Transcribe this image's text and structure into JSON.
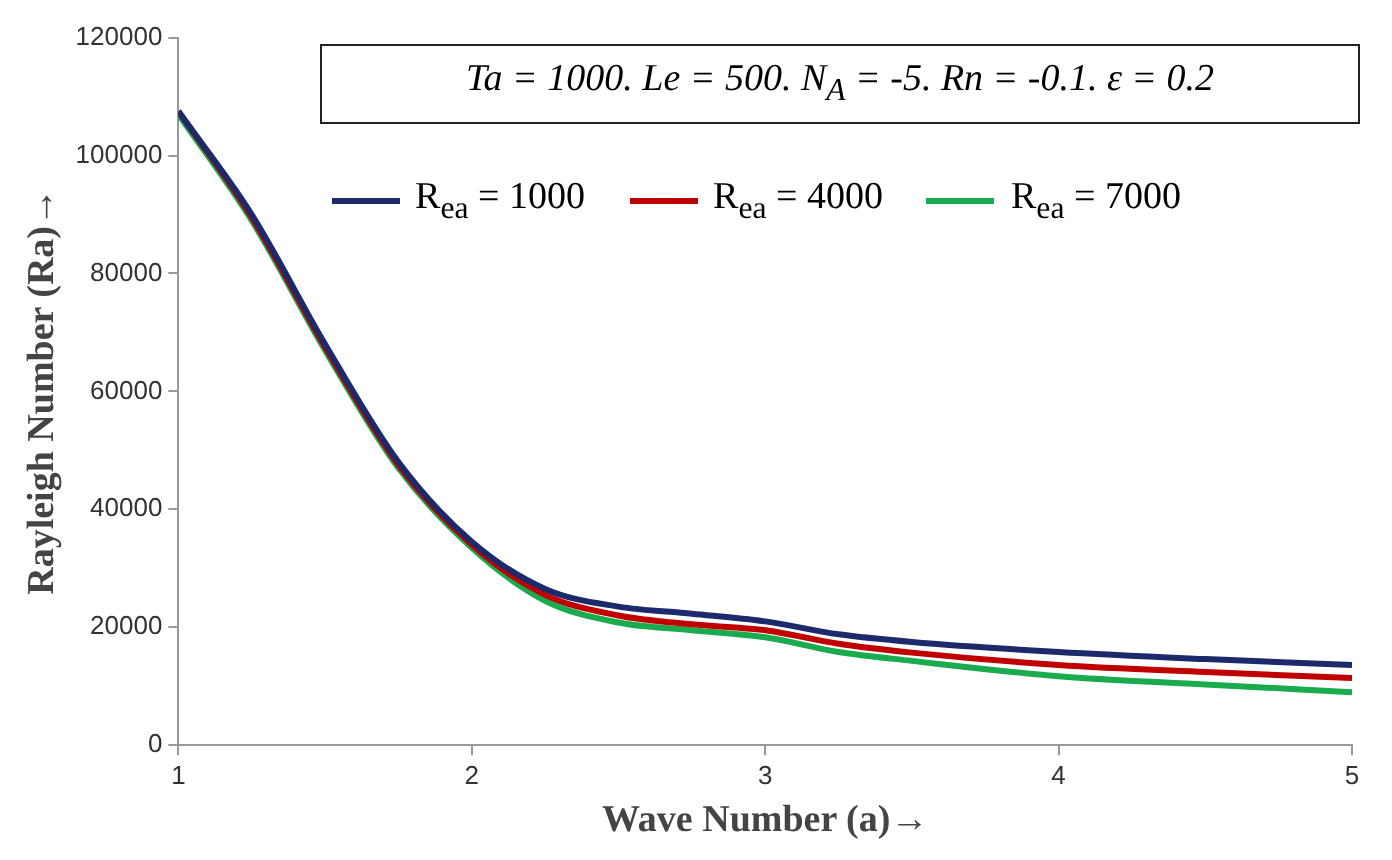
{
  "chart_data": {
    "type": "line",
    "title": "Ta = 1000. Le = 500. N$_{A}$ = -5. Rn = -0.1. ε = 0.2",
    "xlabel": "Wave Number (a)→",
    "ylabel": "Rayleigh Number (Ra)→",
    "x": [
      1,
      1.25,
      1.5,
      1.75,
      2,
      2.25,
      2.5,
      2.75,
      3,
      3.25,
      3.5,
      4,
      4.5,
      5
    ],
    "series": [
      {
        "name": "R$_{ea}$ = 1000",
        "color": "#1c2a6b",
        "values": [
          107500,
          90000,
          68000,
          48000,
          34500,
          26500,
          23500,
          22300,
          21000,
          18800,
          17500,
          15800,
          14600,
          13600
        ]
      },
      {
        "name": "R$_{ea}$ = 4000",
        "color": "#c00000",
        "values": [
          107500,
          89500,
          67500,
          47500,
          34000,
          25500,
          22000,
          20500,
          19500,
          17200,
          15700,
          13600,
          12400,
          11400
        ]
      },
      {
        "name": "R$_{ea}$ = 7000",
        "color": "#1aab4e",
        "values": [
          107000,
          89000,
          67000,
          47000,
          33500,
          24500,
          20800,
          19500,
          18300,
          15800,
          14300,
          11700,
          10300,
          9000
        ]
      }
    ],
    "xlim": [
      1,
      5
    ],
    "xticks": [
      1,
      2,
      3,
      4,
      5
    ],
    "ylim": [
      0,
      120000
    ],
    "yticks": [
      0,
      20000,
      40000,
      60000,
      80000,
      100000,
      120000
    ],
    "grid": false,
    "legend": "top",
    "marker": "none",
    "line_style": "solid"
  }
}
